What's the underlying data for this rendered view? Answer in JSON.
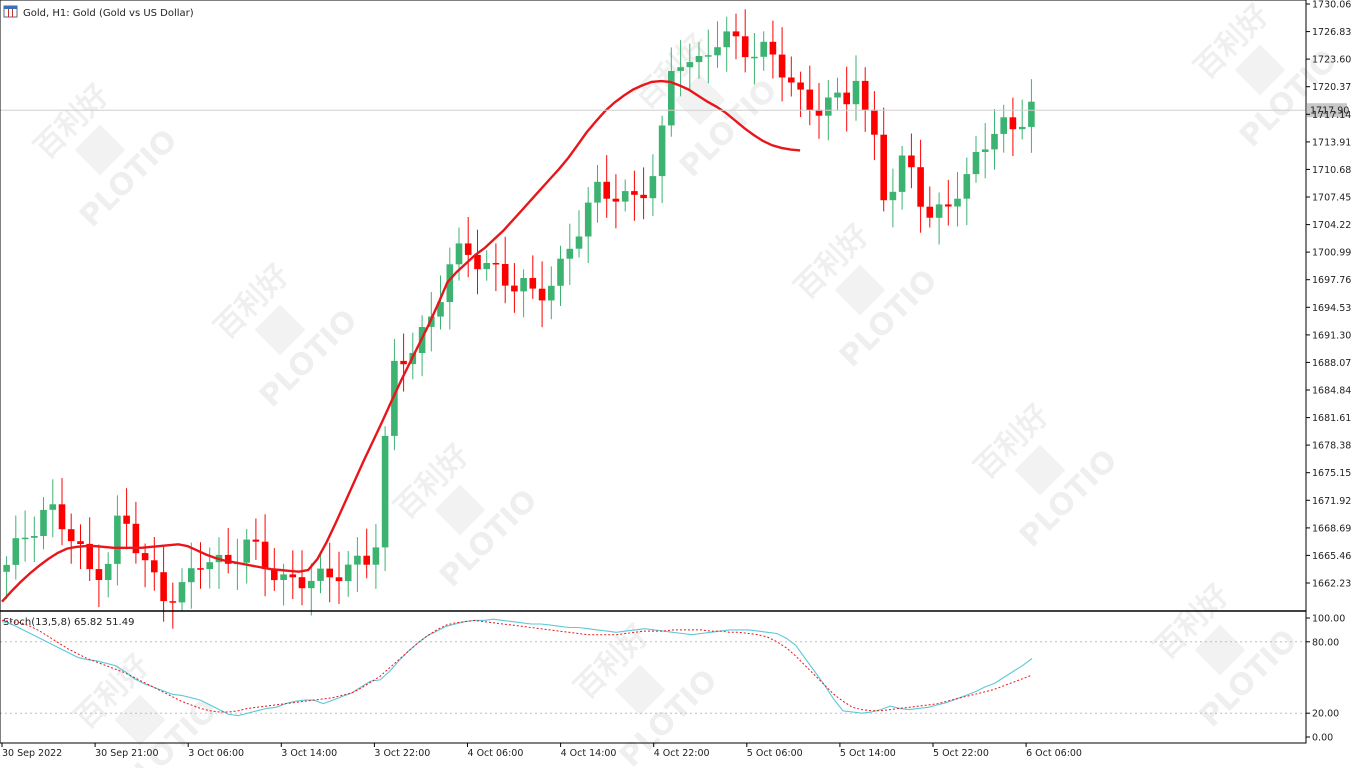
{
  "header": {
    "title": "Gold, H1:  Gold (Gold vs US Dollar)",
    "icon": "chart-window-icon"
  },
  "watermark": {
    "brand": "PLOTIO",
    "cn": "百利好"
  },
  "colors": {
    "bull": "#3cb371",
    "bear": "#ff0000",
    "ma": "#e8161b",
    "stoch_main": "#5fc8d8",
    "stoch_signal": "#e8161b",
    "grid": "#dddddd",
    "bg": "#ffffff"
  },
  "chart_data": [
    {
      "type": "candlestick",
      "title": "Gold, H1:  Gold (Gold vs US Dollar)",
      "ylim": [
        1660.0,
        1730.3
      ],
      "y_ticks": [
        "1730.06",
        "1726.83",
        "1723.60",
        "1720.37",
        "1717.14",
        "1713.91",
        "1710.68",
        "1707.45",
        "1704.22",
        "1700.99",
        "1697.76",
        "1694.53",
        "1691.30",
        "1688.07",
        "1684.84",
        "1681.61",
        "1678.38",
        "1675.15",
        "1671.92",
        "1668.69",
        "1665.46",
        "1662.23"
      ],
      "x_ticks": [
        "30 Sep 2022",
        "30 Sep 21:00",
        "3 Oct 06:00",
        "3 Oct 14:00",
        "3 Oct 22:00",
        "4 Oct 06:00",
        "4 Oct 14:00",
        "4 Oct 22:00",
        "5 Oct 06:00",
        "5 Oct 14:00",
        "5 Oct 22:00",
        "6 Oct 06:00"
      ],
      "current_price": "1717.90",
      "moving_average": [
        1660.5,
        1661.7,
        1662.8,
        1663.8,
        1664.7,
        1665.5,
        1666.2,
        1666.7,
        1666.9,
        1667.0,
        1667.0,
        1666.9,
        1666.8,
        1666.8,
        1666.8,
        1666.8,
        1666.9,
        1667.0,
        1667.1,
        1667.2,
        1667.0,
        1666.5,
        1666.0,
        1665.6,
        1665.3,
        1665.1,
        1664.9,
        1664.7,
        1664.5,
        1664.3,
        1664.2,
        1664.1,
        1664.0,
        1664.2,
        1665.5,
        1667.5,
        1669.8,
        1672.2,
        1674.6,
        1677.0,
        1679.3,
        1681.6,
        1684.0,
        1686.3,
        1688.5,
        1690.7,
        1692.9,
        1695.3,
        1697.8,
        1699.0,
        1700.0,
        1701.0,
        1701.8,
        1702.8,
        1703.8,
        1705.0,
        1706.2,
        1707.4,
        1708.6,
        1709.8,
        1711.0,
        1712.3,
        1713.8,
        1715.3,
        1716.6,
        1717.8,
        1718.8,
        1719.6,
        1720.3,
        1720.8,
        1721.2,
        1721.3,
        1721.2,
        1720.8,
        1720.3,
        1719.6,
        1718.9,
        1718.3,
        1717.6,
        1716.7,
        1715.8,
        1715.0,
        1714.3,
        1713.8,
        1713.5,
        1713.3,
        1713.2
      ]
    },
    {
      "type": "line",
      "title": "Stoch(13,5,8) 65.82 51.49",
      "ylim": [
        0,
        100
      ],
      "y_ticks": [
        "100.00",
        "80.00",
        "20.00",
        "0.00"
      ],
      "levels": [
        20,
        80
      ],
      "series": [
        {
          "name": "main",
          "values": [
            97,
            95,
            91,
            87,
            83,
            79,
            75,
            71,
            67,
            65,
            64,
            62,
            60,
            55,
            49,
            45,
            42,
            39,
            36,
            35,
            33,
            31,
            27,
            23,
            19,
            18,
            20,
            22,
            24,
            25,
            28,
            30,
            31,
            31,
            28,
            31,
            34,
            37,
            42,
            47,
            48,
            55,
            64,
            72,
            79,
            85,
            89,
            93,
            95,
            97,
            98,
            98,
            99,
            98,
            97,
            96,
            95,
            95,
            94,
            93,
            92,
            92,
            91,
            90,
            89,
            88,
            89,
            90,
            91,
            90,
            89,
            88,
            87,
            86,
            87,
            88,
            89,
            90,
            90,
            90,
            89,
            88,
            87,
            83,
            77,
            66,
            55,
            44,
            32,
            22,
            21,
            20,
            21,
            23,
            26,
            24,
            23,
            24,
            25,
            27,
            29,
            32,
            35,
            38,
            42,
            45,
            50,
            55,
            60,
            66
          ]
        },
        {
          "name": "signal",
          "values": [
            98,
            97,
            96,
            93,
            89,
            84,
            79,
            74,
            70,
            66,
            63,
            60,
            57,
            54,
            50,
            46,
            42,
            38,
            34,
            30,
            27,
            24,
            22,
            21,
            21,
            22,
            24,
            25,
            26,
            27,
            28,
            29,
            30,
            31,
            32,
            33,
            35,
            37,
            41,
            46,
            51,
            58,
            65,
            72,
            79,
            85,
            90,
            94,
            96,
            97,
            98,
            97,
            96,
            95,
            94,
            93,
            92,
            91,
            90,
            89,
            88,
            87,
            86,
            86,
            86,
            86,
            87,
            88,
            89,
            89,
            89,
            90,
            90,
            90,
            90,
            89,
            89,
            88,
            88,
            87,
            86,
            84,
            80,
            75,
            68,
            60,
            52,
            44,
            36,
            30,
            25,
            23,
            22,
            22,
            23,
            24,
            25,
            26,
            27,
            28,
            30,
            32,
            34,
            36,
            38,
            40,
            43,
            46,
            49,
            52
          ]
        }
      ]
    }
  ]
}
